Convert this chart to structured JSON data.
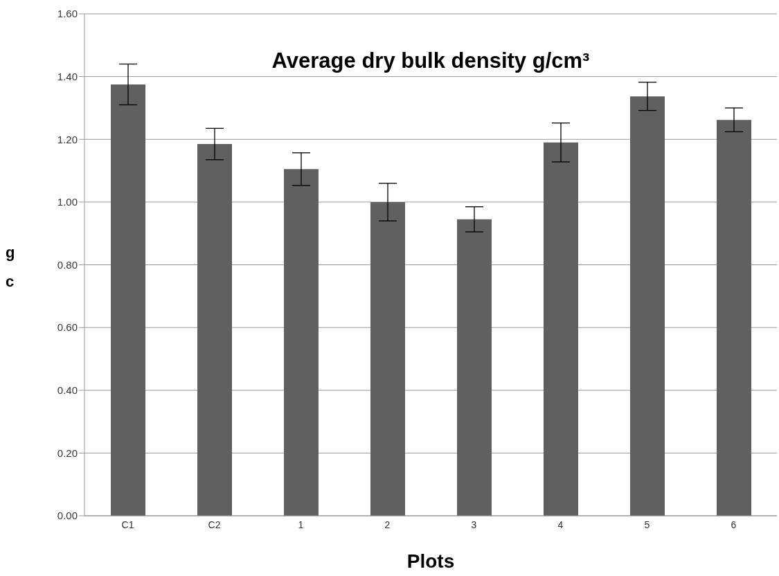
{
  "chart_data": {
    "type": "bar",
    "title": "Average dry bulk density g/cm³",
    "xlabel": "Plots",
    "ylabel": "g\nc",
    "categories": [
      "C1",
      "C2",
      "1",
      "2",
      "3",
      "4",
      "5",
      "6"
    ],
    "values": [
      1.375,
      1.185,
      1.105,
      1.0,
      0.945,
      1.19,
      1.337,
      1.262
    ],
    "errors": [
      0.065,
      0.05,
      0.052,
      0.06,
      0.04,
      0.062,
      0.045,
      0.038
    ],
    "color": "#606060",
    "ylim": [
      0,
      1.6
    ],
    "yticks": [
      {
        "value": 0,
        "label": "0.00"
      },
      {
        "value": 0.2,
        "label": "0.20"
      },
      {
        "value": 0.4,
        "label": "0.40"
      },
      {
        "value": 0.6,
        "label": "0.60"
      },
      {
        "value": 0.8,
        "label": "0.80"
      },
      {
        "value": 1,
        "label": "1.00"
      },
      {
        "value": 1.2,
        "label": "1.20"
      },
      {
        "value": 1.4,
        "label": "1.40"
      },
      {
        "value": 1.6,
        "label": "1.60"
      }
    ],
    "grid": "y"
  }
}
